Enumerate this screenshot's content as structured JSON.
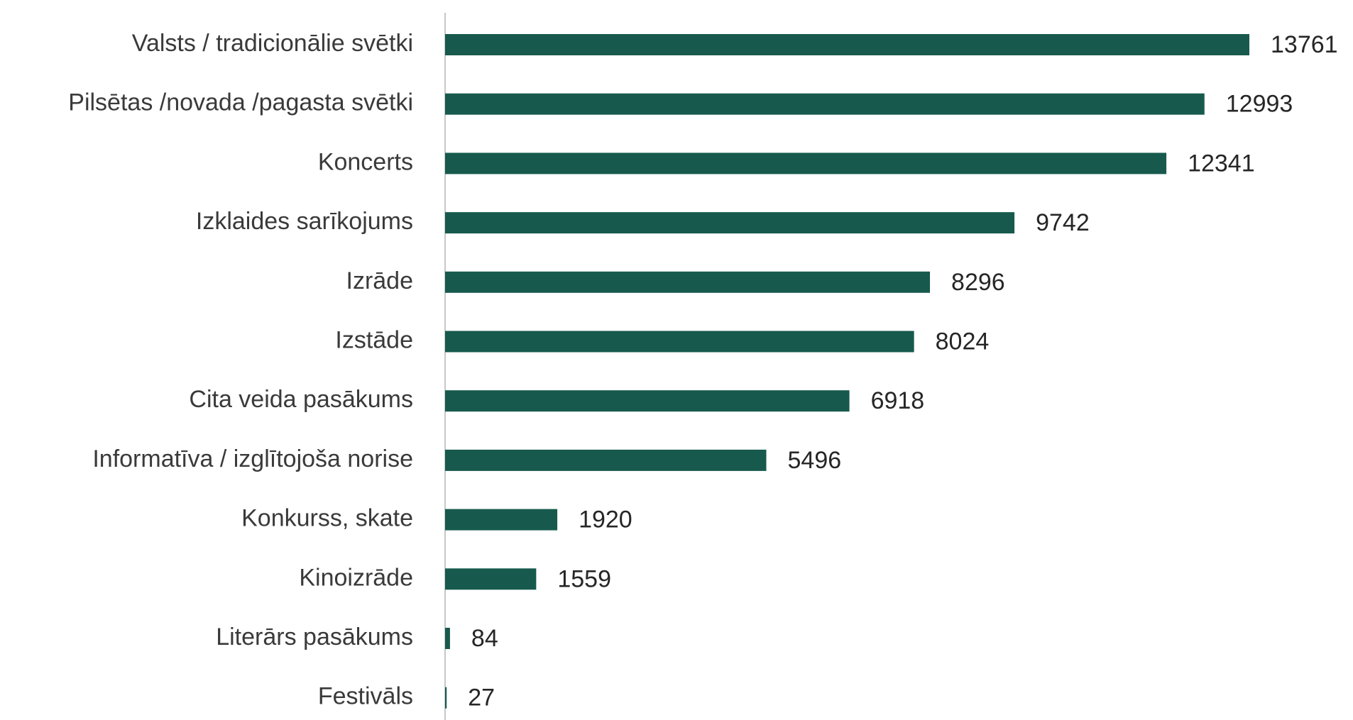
{
  "chart_data": {
    "type": "bar",
    "orientation": "horizontal",
    "title": "",
    "xlabel": "",
    "ylabel": "",
    "grid": false,
    "legend": "none",
    "bar_color": "#175a4d",
    "axis_color": "#c8c8c8",
    "categories": [
      "Valsts / tradicionālie svētki",
      "Pilsētas /novada /pagasta svētki",
      "Koncerts",
      "Izklaides sarīkojums",
      "Izrāde",
      "Izstāde",
      "Cita veida pasākums",
      "Informatīva / izglītojoša norise",
      "Konkurss, skate",
      "Kinoizrāde",
      "Literārs pasākums",
      "Festivāls"
    ],
    "values": [
      13761,
      12993,
      12341,
      9742,
      8296,
      8024,
      6918,
      5496,
      1920,
      1559,
      84,
      27
    ],
    "data_labels": [
      "13761",
      "12993",
      "12341",
      "9742",
      "8296",
      "8024",
      "6918",
      "5496",
      "1920",
      "1559",
      "84",
      "27"
    ],
    "xlim": [
      0,
      13761
    ]
  }
}
